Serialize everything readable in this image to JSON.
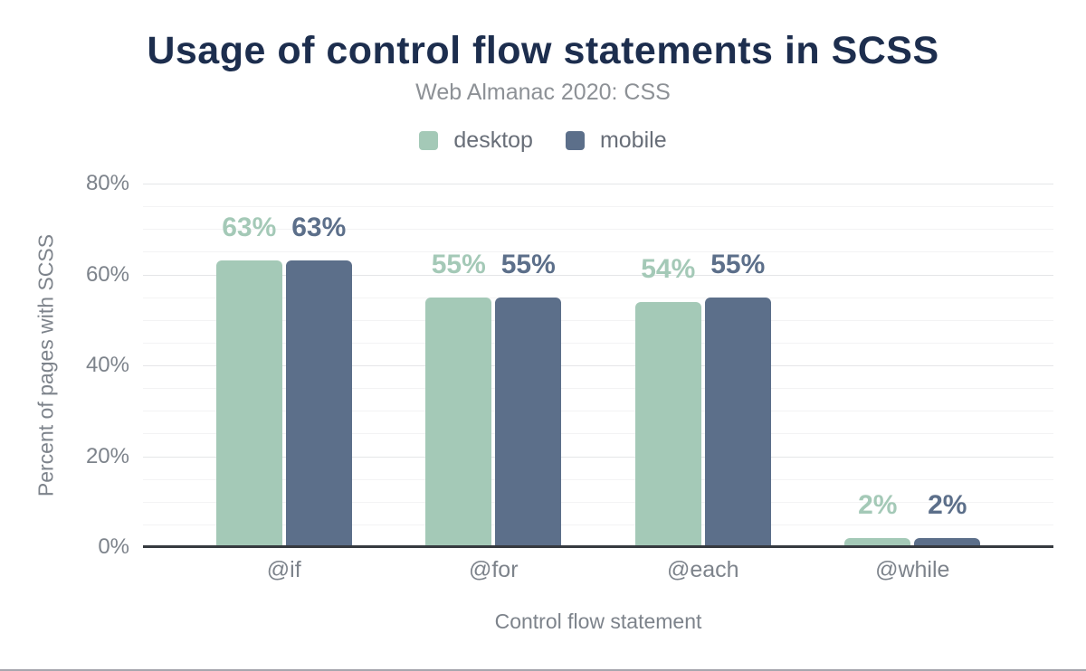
{
  "chart_data": {
    "type": "bar",
    "title": "Usage of control flow statements in SCSS",
    "subtitle": "Web Almanac 2020: CSS",
    "xlabel": "Control flow statement",
    "ylabel": "Percent of pages with SCSS",
    "categories": [
      "@if",
      "@for",
      "@each",
      "@while"
    ],
    "series": [
      {
        "name": "desktop",
        "color": "#a4c9b7",
        "values": [
          63,
          55,
          54,
          2
        ],
        "value_labels": [
          "63%",
          "55%",
          "54%",
          "2%"
        ]
      },
      {
        "name": "mobile",
        "color": "#5c6f8a",
        "values": [
          63,
          55,
          55,
          2
        ],
        "value_labels": [
          "63%",
          "55%",
          "55%",
          "2%"
        ]
      }
    ],
    "ylim": [
      0,
      80
    ],
    "yticks": [
      {
        "value": 80,
        "label": "80%"
      },
      {
        "value": 60,
        "label": "60%"
      },
      {
        "value": 40,
        "label": "40%"
      },
      {
        "value": 20,
        "label": "20%"
      },
      {
        "value": 0,
        "label": "0%"
      }
    ],
    "grid": {
      "minor_step": 5,
      "major_step": 20,
      "on": true
    },
    "legend_position": "top"
  },
  "colors": {
    "title": "#1d2e4e",
    "subtitle_text": "#8d9196",
    "tick_text": "#7d838b",
    "axis_line": "#363a3f",
    "grid_minor": "#f3f3f4",
    "grid_major": "#e5e6e8",
    "page_bottom_border": "#a6a6ae"
  }
}
